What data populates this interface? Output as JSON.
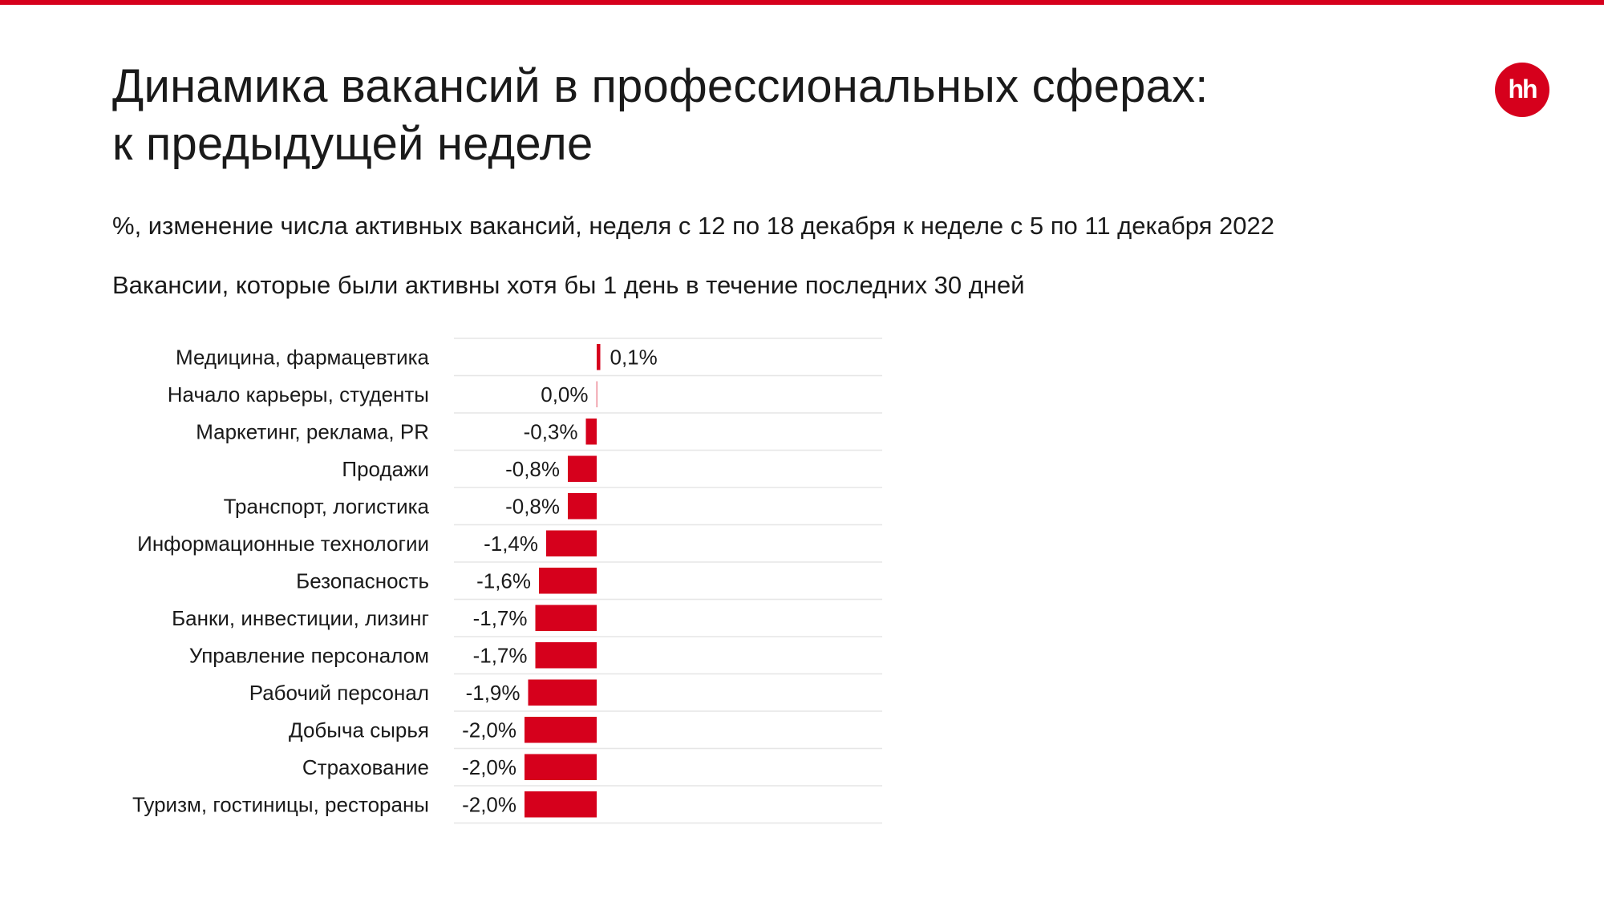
{
  "header": {
    "title_line1": "Динамика вакансий в профессиональных сферах:",
    "title_line2": "к предыдущей неделе",
    "subtitle": "%, изменение числа активных вакансий, неделя с 12 по 18 декабря к неделе с 5 по 11 декабря 2022",
    "note": "Вакансии, которые были активны хотя бы 1 день в течение последних 30 дней",
    "logo_text": "hh",
    "accent_color": "#d6001c"
  },
  "chart_data": {
    "type": "bar",
    "orientation": "horizontal",
    "categories": [
      "Медицина, фармацевтика",
      "Начало карьеры, студенты",
      "Маркетинг, реклама, PR",
      "Продажи",
      "Транспорт, логистика",
      "Информационные технологии",
      "Безопасность",
      "Банки, инвестиции, лизинг",
      "Управление персоналом",
      "Рабочий персонал",
      "Добыча сырья",
      "Страхование",
      "Туризм, гостиницы, рестораны"
    ],
    "values": [
      0.1,
      0.0,
      -0.3,
      -0.8,
      -0.8,
      -1.4,
      -1.6,
      -1.7,
      -1.7,
      -1.9,
      -2.0,
      -2.0,
      -2.0
    ],
    "value_labels": [
      "0,1%",
      "0,0%",
      "-0,3%",
      "-0,8%",
      "-0,8%",
      "-1,4%",
      "-1,6%",
      "-1,7%",
      "-1,7%",
      "-1,9%",
      "-2,0%",
      "-2,0%",
      "-2,0%"
    ],
    "bar_color": "#d6001c",
    "xlim": [
      -4,
      4
    ],
    "grid": false
  }
}
